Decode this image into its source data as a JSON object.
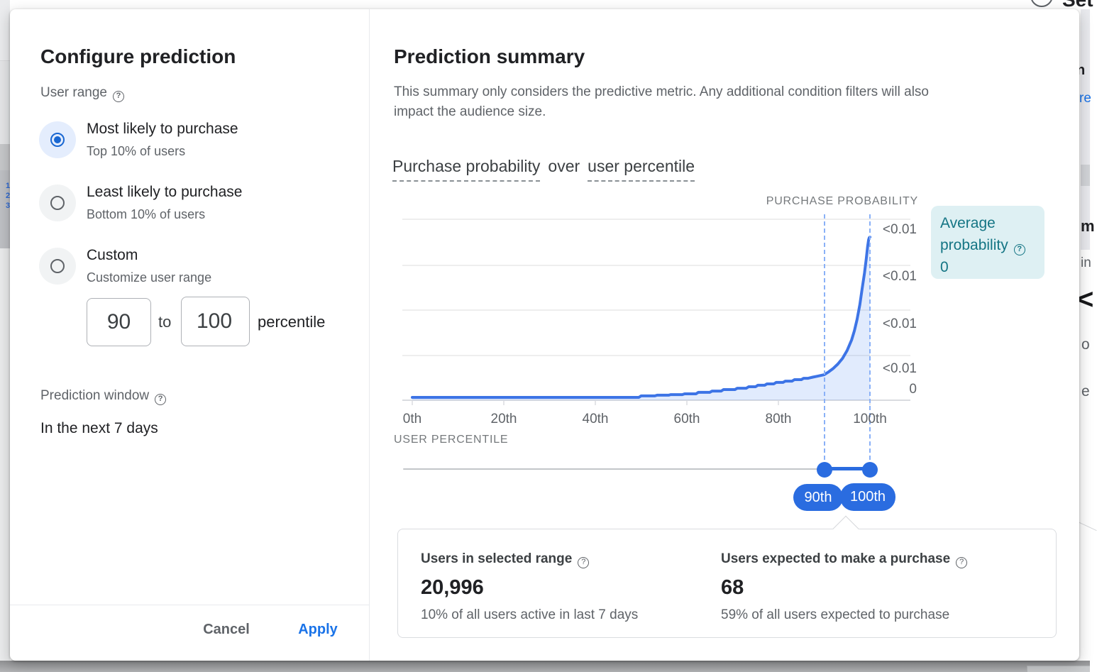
{
  "bg": {
    "top_right_text": "Set",
    "left_numbers": [
      "1",
      "2",
      "3"
    ],
    "right_fragments": {
      "f1": "n",
      "f2": "re",
      "f3": "m",
      "f4": "in",
      "f5": "<",
      "f6": "o",
      "f7": "e"
    }
  },
  "dialog": {
    "config": {
      "title": "Configure prediction",
      "user_range_label": "User range",
      "options": [
        {
          "label": "Most likely to purchase",
          "sublabel": "Top 10% of users",
          "selected": true
        },
        {
          "label": "Least likely to purchase",
          "sublabel": "Bottom 10% of users",
          "selected": false
        },
        {
          "label": "Custom",
          "sublabel": "Customize user range",
          "selected": false
        }
      ],
      "range_from": "90",
      "range_to": "100",
      "to_label": "to",
      "percentile_label": "percentile",
      "prediction_window_label": "Prediction window",
      "prediction_window_value": "In the next 7 days",
      "cancel_label": "Cancel",
      "apply_label": "Apply"
    },
    "summary": {
      "title": "Prediction summary",
      "description_line1": "This summary only considers the predictive metric. Any additional condition filters will also",
      "description_line2": "impact the audience size.",
      "heading_term1": "Purchase probability",
      "heading_connector": "over",
      "heading_term2": "user percentile",
      "avg_box": {
        "line1": "Average",
        "line2": "probability",
        "value": "0"
      },
      "stats": [
        {
          "label": "Users in selected range",
          "value": "20,996",
          "sub": "10% of all users active in last 7 days"
        },
        {
          "label": "Users expected to make a purchase",
          "value": "68",
          "sub": "59% of all users expected to purchase"
        }
      ]
    }
  },
  "chart_data": {
    "type": "area",
    "title": "Purchase probability over user percentile",
    "xlabel": "USER PERCENTILE",
    "ylabel": "PURCHASE PROBABILITY",
    "x_ticks": [
      "0th",
      "20th",
      "40th",
      "60th",
      "80th",
      "100th"
    ],
    "x_range": [
      0,
      100
    ],
    "y_tick_labels": [
      "<0.01",
      "<0.01",
      "<0.01",
      "<0.01",
      "0"
    ],
    "y_unit": "relative",
    "grid": true,
    "selected_range_percentiles": [
      90,
      100
    ],
    "selected_range_labels": [
      "90th",
      "100th"
    ],
    "series": [
      {
        "name": "Purchase probability",
        "points": [
          [
            0,
            0.015
          ],
          [
            20,
            0.015
          ],
          [
            40,
            0.015
          ],
          [
            49.5,
            0.015
          ],
          [
            50,
            0.023
          ],
          [
            53,
            0.023
          ],
          [
            53.5,
            0.027
          ],
          [
            56,
            0.027
          ],
          [
            56.5,
            0.03
          ],
          [
            59,
            0.03
          ],
          [
            59.5,
            0.034
          ],
          [
            62,
            0.034
          ],
          [
            62.5,
            0.042
          ],
          [
            65,
            0.042
          ],
          [
            65.5,
            0.049
          ],
          [
            67.5,
            0.049
          ],
          [
            68,
            0.057
          ],
          [
            70.5,
            0.057
          ],
          [
            71,
            0.064
          ],
          [
            73,
            0.064
          ],
          [
            73.5,
            0.072
          ],
          [
            75,
            0.072
          ],
          [
            75.5,
            0.08
          ],
          [
            77,
            0.08
          ],
          [
            77.5,
            0.087
          ],
          [
            79,
            0.087
          ],
          [
            79.5,
            0.095
          ],
          [
            81,
            0.095
          ],
          [
            81.5,
            0.102
          ],
          [
            83,
            0.102
          ],
          [
            83.5,
            0.11
          ],
          [
            85,
            0.11
          ],
          [
            85.5,
            0.117
          ],
          [
            86.5,
            0.117
          ],
          [
            87.5,
            0.123
          ],
          [
            88.5,
            0.128
          ],
          [
            90,
            0.136
          ],
          [
            91,
            0.152
          ],
          [
            92,
            0.17
          ],
          [
            93,
            0.193
          ],
          [
            94,
            0.223
          ],
          [
            95,
            0.265
          ],
          [
            96,
            0.322
          ],
          [
            96.6,
            0.371
          ],
          [
            97.2,
            0.432
          ],
          [
            97.8,
            0.511
          ],
          [
            98.3,
            0.595
          ],
          [
            98.8,
            0.678
          ],
          [
            99.2,
            0.754
          ],
          [
            99.5,
            0.822
          ],
          [
            99.7,
            0.856
          ],
          [
            99.85,
            0.867
          ],
          [
            100,
            0.871
          ]
        ]
      }
    ],
    "colors": {
      "line": "#3d74e6",
      "fill": "rgba(66,133,244,0.16)",
      "selection": "#2a6ce0",
      "dashed": "#8ab1f7",
      "grid": "#e8e8e8"
    }
  }
}
